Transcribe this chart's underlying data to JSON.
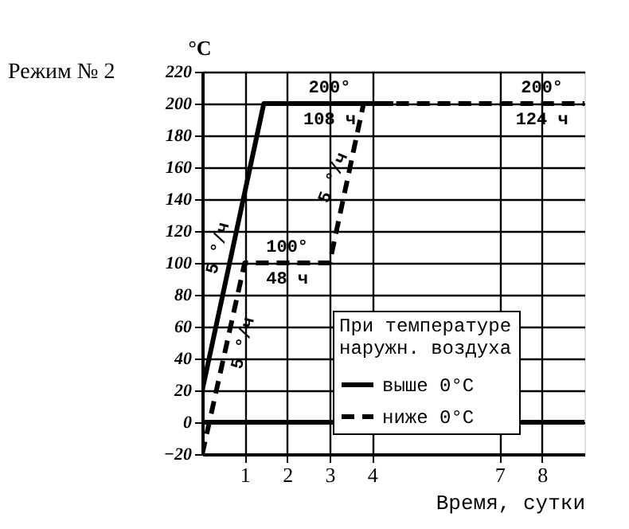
{
  "chart_data": {
    "type": "line",
    "title": "Режим № 2",
    "xlabel": "Время, сутки",
    "ylabel": "°C",
    "legend_title": "При температуре\nнаружн. воздуха",
    "xlim": [
      0,
      9
    ],
    "xticks": [
      1,
      2,
      3,
      4,
      7,
      8
    ],
    "ylim": [
      -20,
      220
    ],
    "yticks": [
      -20,
      0,
      20,
      40,
      60,
      80,
      100,
      120,
      140,
      160,
      180,
      200,
      220
    ],
    "grid": true,
    "legend": "bottom right",
    "marker": "none",
    "series": [
      {
        "name": "выше 0°C",
        "color": "#000000",
        "line_style": "solid",
        "x": [
          0,
          1.45,
          4.5
        ],
        "values": [
          20,
          200,
          200
        ]
      },
      {
        "name": "ниже 0°C",
        "color": "#000000",
        "line_style": "dashed",
        "x": [
          0,
          1,
          3,
          3.8,
          9
        ],
        "values": [
          -20,
          100,
          100,
          200,
          200
        ]
      }
    ],
    "ref_lines": [
      {
        "axis": "y",
        "value": 0,
        "label": null,
        "color": "#000000"
      }
    ],
    "annotations": [
      {
        "text": "5 °/ч",
        "x": 0.7,
        "y": 107
      },
      {
        "text": "5 °/ч",
        "x": 0.6,
        "y": 52
      },
      {
        "text": "5 °/ч",
        "x": 3.4,
        "y": 150
      },
      {
        "text": "100°",
        "x": 2,
        "y": 100
      },
      {
        "text": "48 ч",
        "x": 2,
        "y": 100
      },
      {
        "text": "200°",
        "x": 3,
        "y": 200
      },
      {
        "text": "108 ч",
        "x": 3,
        "y": 200
      },
      {
        "text": "200°",
        "x": 8,
        "y": 200
      },
      {
        "text": "124 ч",
        "x": 8,
        "y": 200
      }
    ]
  }
}
